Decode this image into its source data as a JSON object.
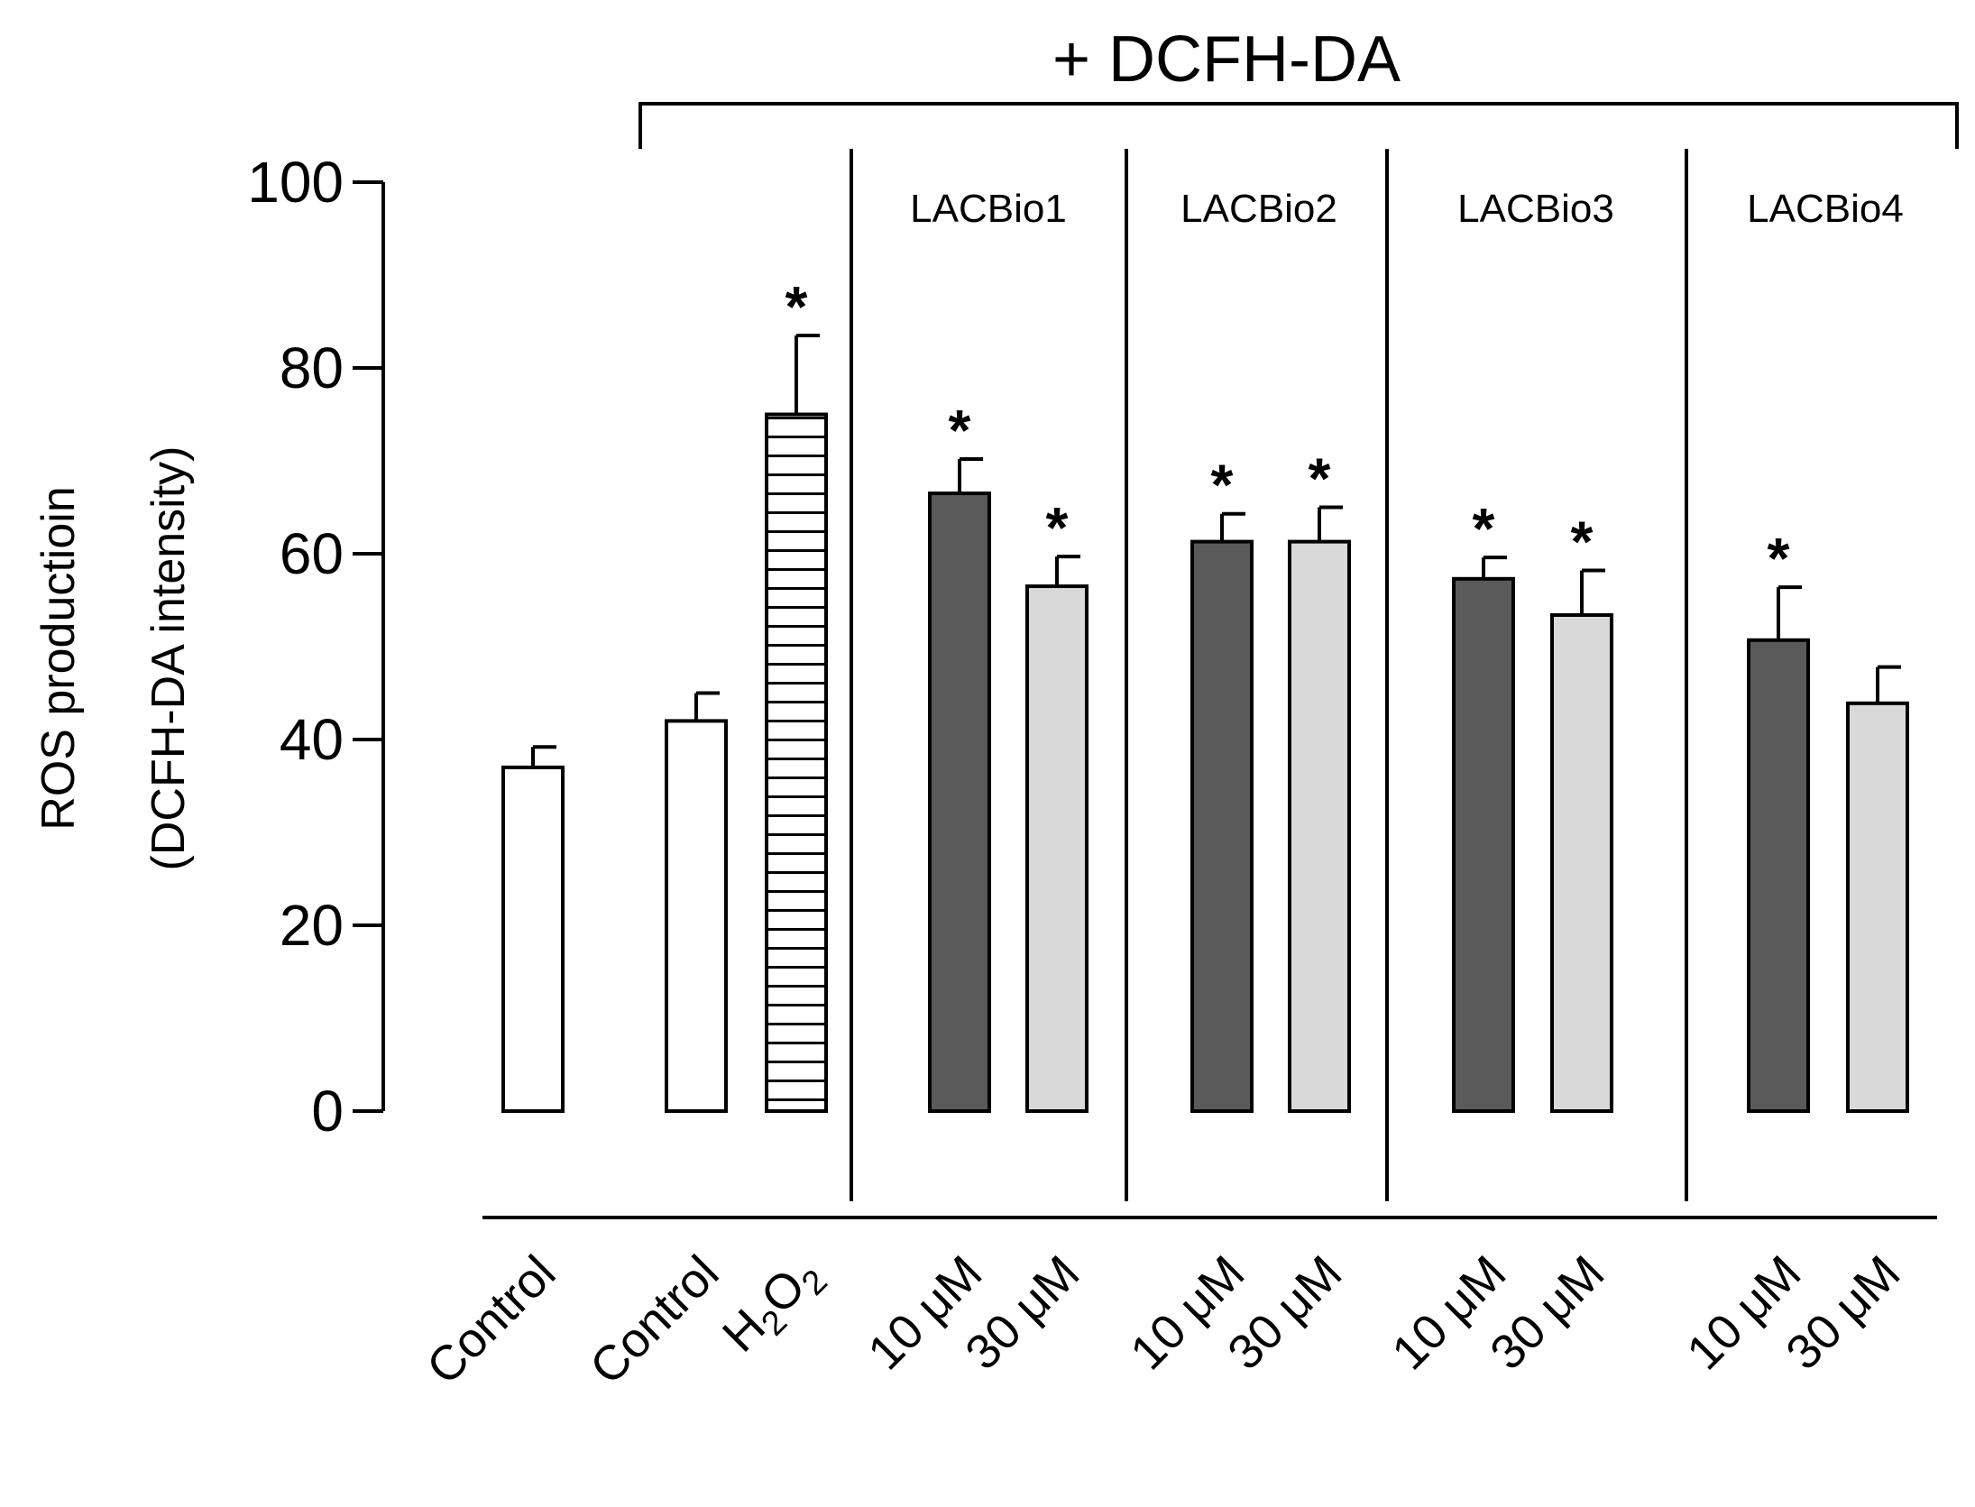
{
  "chart_data": {
    "type": "bar",
    "title": "",
    "ylabel_line1": "ROS productioin",
    "ylabel_line2": "(DCFH-DA intensity)",
    "xlabel": "",
    "ylim": [
      0,
      100
    ],
    "yticks": [
      0,
      20,
      40,
      60,
      80,
      100
    ],
    "bracket_label": "+ DCFH-DA",
    "group_labels": [
      "LACBio1",
      "LACBio2",
      "LACBio3",
      "LACBio4"
    ],
    "colors": {
      "open": "#ffffff",
      "dark": "#5a5a5a",
      "light": "#d9d9d9",
      "edge": "#000000"
    },
    "bars": [
      {
        "label": "Control",
        "value": 37,
        "error": 2.2,
        "fill": "open",
        "sig": false
      },
      {
        "label": "Control",
        "value": 42,
        "error": 3,
        "fill": "open",
        "sig": false
      },
      {
        "label": "H2O2",
        "label_main": "H",
        "label_sub1": "2",
        "label_mid": "O",
        "label_sub2": "2",
        "value": 75,
        "error": 8.5,
        "fill": "hatch",
        "sig": true
      },
      {
        "label": "10 μM",
        "group": "LACBio1",
        "value": 66.5,
        "error": 3.7,
        "fill": "dark",
        "sig": true
      },
      {
        "label": "30 μM",
        "group": "LACBio1",
        "value": 56.5,
        "error": 3.2,
        "fill": "light",
        "sig": true
      },
      {
        "label": "10 μM",
        "group": "LACBio2",
        "value": 61.3,
        "error": 3,
        "fill": "dark",
        "sig": true
      },
      {
        "label": "30 μM",
        "group": "LACBio2",
        "value": 61.3,
        "error": 3.7,
        "fill": "light",
        "sig": true
      },
      {
        "label": "10 μM",
        "group": "LACBio3",
        "value": 57.3,
        "error": 2.3,
        "fill": "dark",
        "sig": true
      },
      {
        "label": "30 μM",
        "group": "LACBio3",
        "value": 53.4,
        "error": 4.8,
        "fill": "light",
        "sig": true
      },
      {
        "label": "10 μM",
        "group": "LACBio4",
        "value": 50.7,
        "error": 5.7,
        "fill": "dark",
        "sig": true
      },
      {
        "label": "30 μM",
        "group": "LACBio4",
        "value": 43.9,
        "error": 3.9,
        "fill": "light",
        "sig": false
      }
    ],
    "sig_marker": "*"
  }
}
